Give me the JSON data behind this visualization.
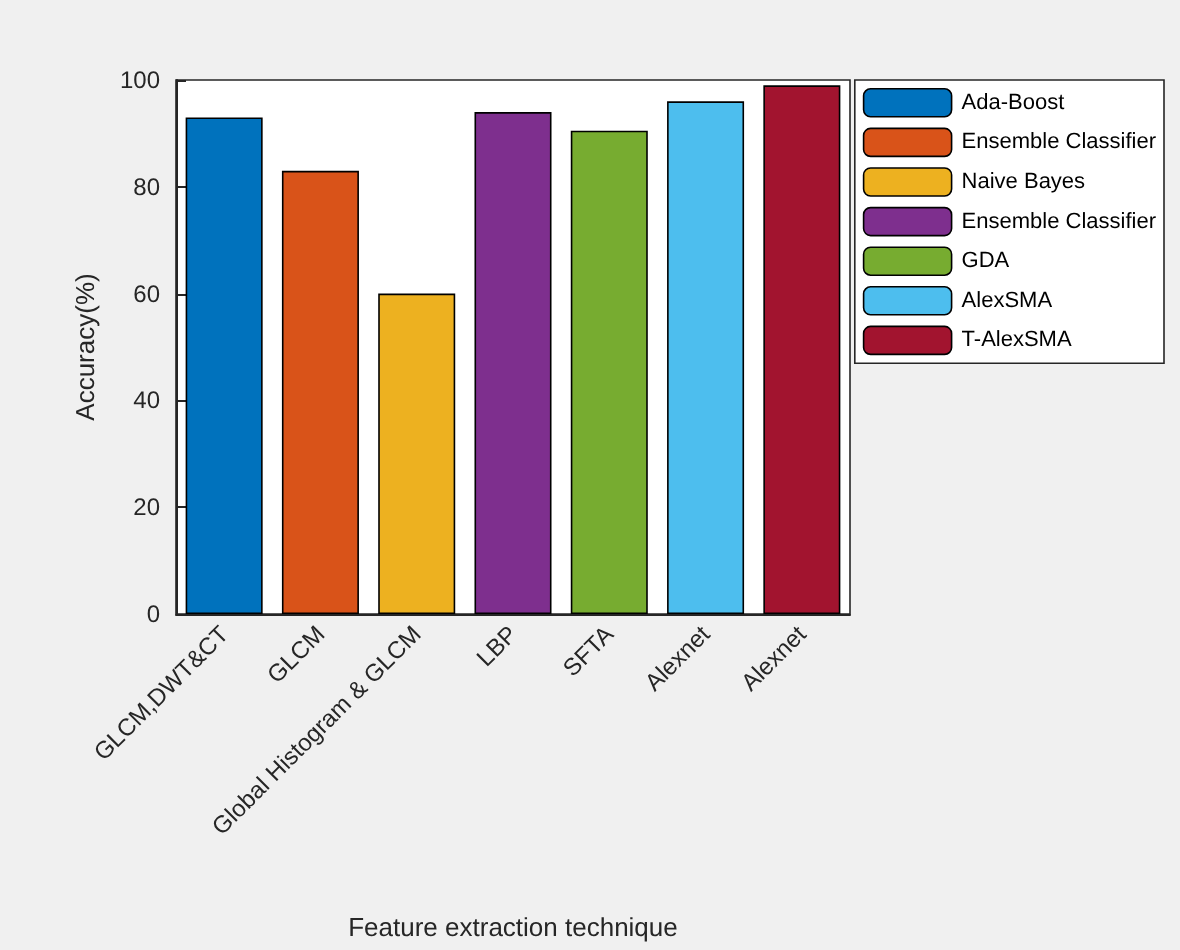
{
  "chart_data": {
    "type": "bar",
    "xlabel": "Feature extraction technique",
    "ylabel": "Accuracy(%)",
    "categories": [
      "GLCM,DWT&CT",
      "GLCM",
      "Global Histogram & GLCM",
      "LBP",
      "SFTA",
      "Alexnet",
      "Alexnet"
    ],
    "series": [
      {
        "name": "Ada-Boost",
        "color": "#0072bd",
        "values": [
          93,
          null,
          null,
          null,
          null,
          null,
          null
        ]
      },
      {
        "name": "Ensemble Classifier",
        "color": "#d95319",
        "values": [
          null,
          83,
          null,
          null,
          null,
          null,
          null
        ]
      },
      {
        "name": "Naive Bayes",
        "color": "#edb120",
        "values": [
          null,
          null,
          60,
          null,
          null,
          null,
          null
        ]
      },
      {
        "name": "Ensemble Classifier",
        "color": "#7e2f8e",
        "values": [
          null,
          null,
          null,
          94,
          null,
          null,
          null
        ]
      },
      {
        "name": "GDA",
        "color": "#77ac30",
        "values": [
          null,
          null,
          null,
          null,
          90.5,
          null,
          null
        ]
      },
      {
        "name": "AlexSMA",
        "color": "#4dbeee",
        "values": [
          null,
          null,
          null,
          null,
          null,
          96,
          null
        ]
      },
      {
        "name": "T-AlexSMA",
        "color": "#a2142f",
        "values": [
          null,
          null,
          null,
          null,
          null,
          null,
          99
        ]
      }
    ],
    "ylim": [
      0,
      100
    ],
    "yticks": [
      0,
      20,
      40,
      60,
      80,
      100
    ],
    "grid": false,
    "legend": "right"
  }
}
